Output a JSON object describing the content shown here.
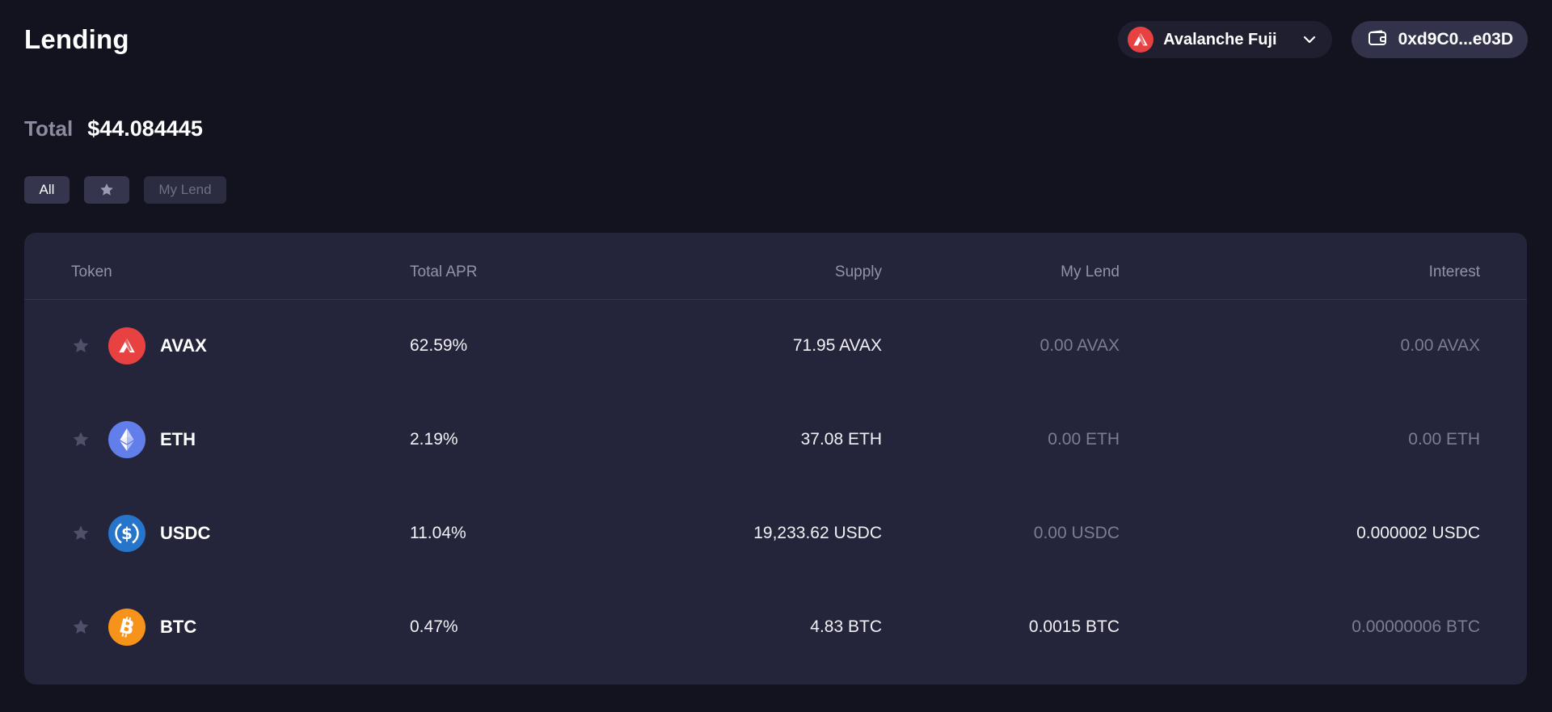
{
  "header": {
    "title": "Lending",
    "network": "Avalanche Fuji",
    "wallet_address": "0xd9C0...e03D"
  },
  "summary": {
    "total_label": "Total",
    "total_value": "$44.084445"
  },
  "filters": {
    "all_label": "All",
    "my_lend_label": "My Lend"
  },
  "table": {
    "columns": {
      "token": "Token",
      "total_apr": "Total APR",
      "supply": "Supply",
      "my_lend": "My Lend",
      "interest": "Interest"
    },
    "rows": [
      {
        "symbol": "AVAX",
        "apr": "62.59%",
        "supply": "71.95 AVAX",
        "my_lend": "0.00 AVAX",
        "interest": "0.00 AVAX",
        "logo_color": "#e84142",
        "icon": "avax-icon"
      },
      {
        "symbol": "ETH",
        "apr": "2.19%",
        "supply": "37.08 ETH",
        "my_lend": "0.00 ETH",
        "interest": "0.00 ETH",
        "logo_color": "#627eea",
        "icon": "eth-icon"
      },
      {
        "symbol": "USDC",
        "apr": "11.04%",
        "supply": "19,233.62 USDC",
        "my_lend": "0.00 USDC",
        "interest": "0.000002 USDC",
        "logo_color": "#2775ca",
        "icon": "usdc-icon"
      },
      {
        "symbol": "BTC",
        "apr": "0.47%",
        "supply": "4.83 BTC",
        "my_lend": "0.0015 BTC",
        "interest": "0.00000006 BTC",
        "logo_color": "#f7931a",
        "icon": "btc-icon"
      }
    ]
  }
}
